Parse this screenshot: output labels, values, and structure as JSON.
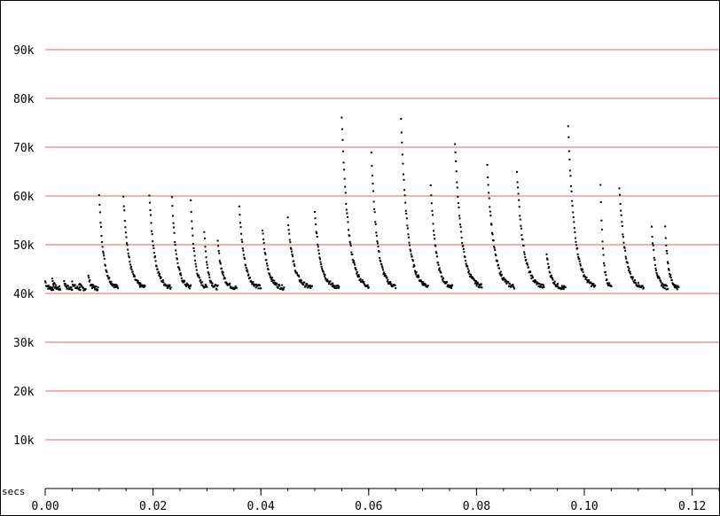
{
  "chart_data": {
    "type": "scatter",
    "title": "",
    "xlabel": "secs",
    "ylabel": "",
    "xlim": [
      0.0,
      0.125
    ],
    "ylim": [
      0,
      100000
    ],
    "grid": true,
    "colors": {
      "grid": "#e06666",
      "points": "#000000",
      "axis": "#000000"
    },
    "x_ticks": [
      {
        "value": 0.0,
        "label": "0.00"
      },
      {
        "value": 0.02,
        "label": "0.02"
      },
      {
        "value": 0.04,
        "label": "0.04"
      },
      {
        "value": 0.06,
        "label": "0.06"
      },
      {
        "value": 0.08,
        "label": "0.08"
      },
      {
        "value": 0.1,
        "label": "0.10"
      },
      {
        "value": 0.12,
        "label": "0.12"
      }
    ],
    "y_ticks": [
      {
        "value": 10000,
        "label": "10k"
      },
      {
        "value": 20000,
        "label": "20k"
      },
      {
        "value": 30000,
        "label": "30k"
      },
      {
        "value": 40000,
        "label": "40k"
      },
      {
        "value": 50000,
        "label": "50k"
      },
      {
        "value": 60000,
        "label": "60k"
      },
      {
        "value": 70000,
        "label": "70k"
      },
      {
        "value": 80000,
        "label": "80k"
      },
      {
        "value": 90000,
        "label": "90k"
      }
    ],
    "series": [
      {
        "baseline": 41000,
        "pulses": [
          {
            "x": 0.0,
            "peak": 42500,
            "dur": 0.0015
          },
          {
            "x": 0.0013,
            "peak": 43000,
            "dur": 0.0015
          },
          {
            "x": 0.0035,
            "peak": 42500,
            "dur": 0.0015
          },
          {
            "x": 0.005,
            "peak": 42500,
            "dur": 0.0015
          },
          {
            "x": 0.0063,
            "peak": 42000,
            "dur": 0.0012
          },
          {
            "x": 0.008,
            "peak": 43500,
            "dur": 0.0018
          },
          {
            "x": 0.01,
            "peak": 60000,
            "dur": 0.0035
          },
          {
            "x": 0.0145,
            "peak": 60000,
            "dur": 0.004
          },
          {
            "x": 0.0193,
            "peak": 60500,
            "dur": 0.004
          },
          {
            "x": 0.0235,
            "peak": 60000,
            "dur": 0.0035
          },
          {
            "x": 0.027,
            "peak": 59000,
            "dur": 0.003
          },
          {
            "x": 0.0295,
            "peak": 53000,
            "dur": 0.0025
          },
          {
            "x": 0.032,
            "peak": 50500,
            "dur": 0.0035
          },
          {
            "x": 0.036,
            "peak": 57500,
            "dur": 0.004
          },
          {
            "x": 0.0403,
            "peak": 53000,
            "dur": 0.004
          },
          {
            "x": 0.045,
            "peak": 55500,
            "dur": 0.0045
          },
          {
            "x": 0.05,
            "peak": 56500,
            "dur": 0.0045
          },
          {
            "x": 0.055,
            "peak": 76000,
            "dur": 0.005
          },
          {
            "x": 0.0605,
            "peak": 68500,
            "dur": 0.0045
          },
          {
            "x": 0.066,
            "peak": 75500,
            "dur": 0.005
          },
          {
            "x": 0.0715,
            "peak": 62500,
            "dur": 0.004
          },
          {
            "x": 0.076,
            "peak": 71000,
            "dur": 0.005
          },
          {
            "x": 0.082,
            "peak": 66000,
            "dur": 0.005
          },
          {
            "x": 0.0875,
            "peak": 65000,
            "dur": 0.005
          },
          {
            "x": 0.093,
            "peak": 48000,
            "dur": 0.0035
          },
          {
            "x": 0.097,
            "peak": 74000,
            "dur": 0.005
          },
          {
            "x": 0.103,
            "peak": 62000,
            "dur": 0.002
          },
          {
            "x": 0.1065,
            "peak": 61500,
            "dur": 0.0045
          },
          {
            "x": 0.1125,
            "peak": 53500,
            "dur": 0.003
          },
          {
            "x": 0.115,
            "peak": 53500,
            "dur": 0.0025
          }
        ]
      }
    ]
  }
}
